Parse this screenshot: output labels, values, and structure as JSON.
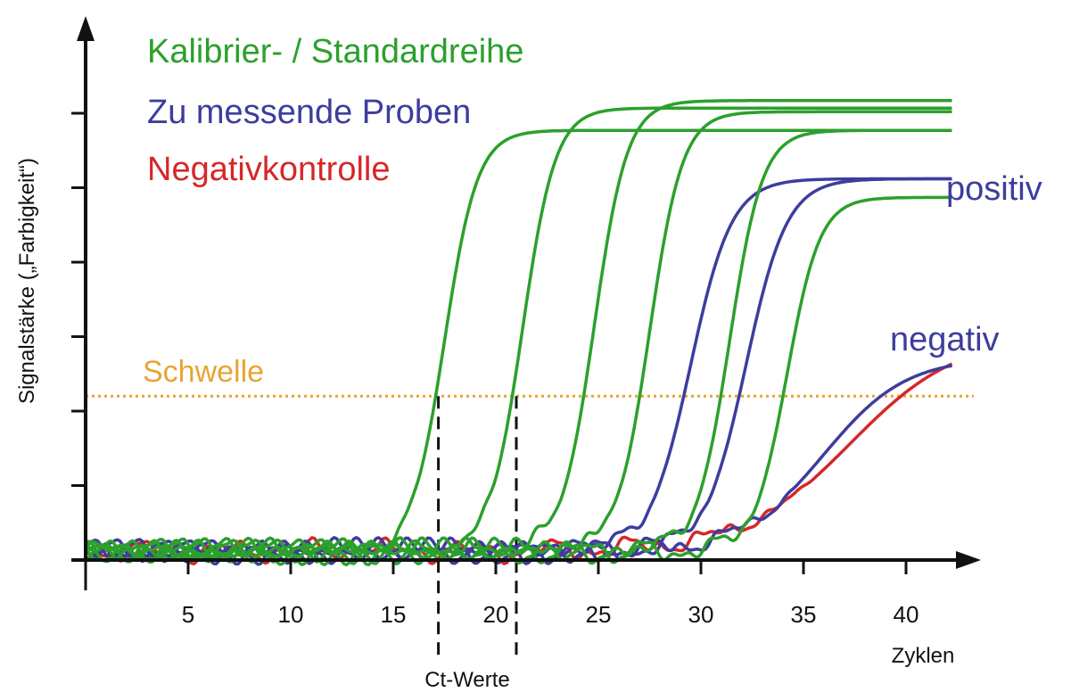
{
  "chart_data": {
    "type": "line",
    "title": "",
    "xlabel": "Zyklen",
    "ylabel": "Signalstärke („Farbigkeit“)",
    "xlim": [
      0,
      43
    ],
    "ylim": [
      0,
      7
    ],
    "x_ticks": [
      5,
      10,
      15,
      20,
      25,
      30,
      35,
      40
    ],
    "y_ticks_count": 6,
    "grid": false,
    "legend": [
      {
        "label": "Kalibrier- / Standardreihe",
        "color": "#2ca02c"
      },
      {
        "label": "Zu messende Proben",
        "color": "#3d3d9e"
      },
      {
        "label": "Negativkontrolle",
        "color": "#d62728"
      }
    ],
    "threshold": {
      "label": "Schwelle",
      "y": 2.2,
      "color": "#e6a532"
    },
    "ct_values": {
      "label": "Ct-Werte",
      "x": [
        17.2,
        21
      ]
    },
    "annotations": {
      "positive": "positiv",
      "negative": "negativ"
    },
    "series": [
      {
        "group": "standard",
        "color": "#2ca02c",
        "midpoint": 17.5,
        "slope": 1.25,
        "plateau": 5.65
      },
      {
        "group": "standard",
        "color": "#2ca02c",
        "midpoint": 21.3,
        "slope": 1.25,
        "plateau": 5.95
      },
      {
        "group": "standard",
        "color": "#2ca02c",
        "midpoint": 24.8,
        "slope": 1.25,
        "plateau": 6.05
      },
      {
        "group": "standard",
        "color": "#2ca02c",
        "midpoint": 27.5,
        "slope": 1.25,
        "plateau": 5.9
      },
      {
        "group": "standard",
        "color": "#2ca02c",
        "midpoint": 31.4,
        "slope": 1.25,
        "plateau": 5.65
      },
      {
        "group": "standard",
        "color": "#2ca02c",
        "midpoint": 34.2,
        "slope": 1.25,
        "plateau": 4.75
      },
      {
        "group": "samples",
        "color": "#3d3d9e",
        "midpoint": 29.5,
        "slope": 1.0,
        "plateau": 5.0
      },
      {
        "group": "samples",
        "color": "#3d3d9e",
        "midpoint": 32.2,
        "slope": 1.0,
        "plateau": 5.0
      },
      {
        "group": "samples",
        "color": "#3d3d9e",
        "midpoint": 36.0,
        "slope": 0.5,
        "plateau": 2.6
      },
      {
        "group": "negative_control",
        "color": "#d62728",
        "midpoint": 37.3,
        "slope": 0.38,
        "plateau": 2.9
      }
    ]
  }
}
